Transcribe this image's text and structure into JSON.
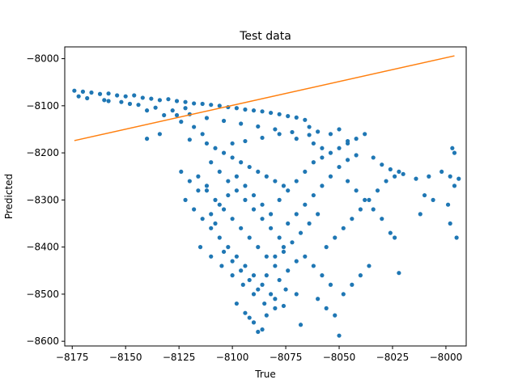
{
  "chart_data": {
    "type": "scatter",
    "title": "Test data",
    "xlabel": "True",
    "ylabel": "Predicted",
    "xlim": [
      -8178.5,
      -7990.5
    ],
    "ylim": [
      -8610,
      -7975
    ],
    "xticks": [
      -8175,
      -8150,
      -8125,
      -8100,
      -8075,
      -8050,
      -8025,
      -8000
    ],
    "xtick_labels": [
      "−8175",
      "−8150",
      "−8125",
      "−8100",
      "−8075",
      "−8050",
      "−8025",
      "−8000"
    ],
    "yticks": [
      -8600,
      -8500,
      -8400,
      -8300,
      -8200,
      -8100,
      -8000
    ],
    "ytick_labels": [
      "−8600",
      "−8500",
      "−8400",
      "−8300",
      "−8200",
      "−8100",
      "−8000"
    ],
    "grid": false,
    "colors": {
      "scatter": "#1f77b4",
      "line": "#ff7f0e"
    },
    "series": [
      {
        "type": "scatter",
        "note_points": "sampled from the scatter cloud",
        "points": [
          [
            -8174,
            -8068
          ],
          [
            -8170,
            -8070
          ],
          [
            -8166,
            -8072
          ],
          [
            -8162,
            -8075
          ],
          [
            -8158,
            -8074
          ],
          [
            -8154,
            -8078
          ],
          [
            -8150,
            -8080
          ],
          [
            -8146,
            -8078
          ],
          [
            -8142,
            -8083
          ],
          [
            -8138,
            -8085
          ],
          [
            -8134,
            -8088
          ],
          [
            -8130,
            -8086
          ],
          [
            -8126,
            -8090
          ],
          [
            -8122,
            -8092
          ],
          [
            -8118,
            -8095
          ],
          [
            -8114,
            -8096
          ],
          [
            -8110,
            -8098
          ],
          [
            -8106,
            -8100
          ],
          [
            -8102,
            -8103
          ],
          [
            -8098,
            -8105
          ],
          [
            -8094,
            -8108
          ],
          [
            -8090,
            -8110
          ],
          [
            -8086,
            -8112
          ],
          [
            -8082,
            -8115
          ],
          [
            -8078,
            -8118
          ],
          [
            -8074,
            -8122
          ],
          [
            -8070,
            -8125
          ],
          [
            -8066,
            -8130
          ],
          [
            -8172,
            -8080
          ],
          [
            -8168,
            -8084
          ],
          [
            -8160,
            -8088
          ],
          [
            -8152,
            -8092
          ],
          [
            -8144,
            -8098
          ],
          [
            -8136,
            -8104
          ],
          [
            -8128,
            -8110
          ],
          [
            -8120,
            -8118
          ],
          [
            -8112,
            -8126
          ],
          [
            -8104,
            -8132
          ],
          [
            -8096,
            -8138
          ],
          [
            -8088,
            -8144
          ],
          [
            -8080,
            -8150
          ],
          [
            -8072,
            -8156
          ],
          [
            -8064,
            -8162
          ],
          [
            -8158,
            -8090
          ],
          [
            -8148,
            -8096
          ],
          [
            -8140,
            -8110
          ],
          [
            -8132,
            -8120
          ],
          [
            -8124,
            -8134
          ],
          [
            -8118,
            -8145
          ],
          [
            -8114,
            -8160
          ],
          [
            -8120,
            -8172
          ],
          [
            -8112,
            -8180
          ],
          [
            -8108,
            -8190
          ],
          [
            -8104,
            -8200
          ],
          [
            -8100,
            -8210
          ],
          [
            -8096,
            -8220
          ],
          [
            -8092,
            -8230
          ],
          [
            -8088,
            -8240
          ],
          [
            -8084,
            -8250
          ],
          [
            -8080,
            -8260
          ],
          [
            -8076,
            -8270
          ],
          [
            -8100,
            -8180
          ],
          [
            -8094,
            -8175
          ],
          [
            -8086,
            -8168
          ],
          [
            -8078,
            -8160
          ],
          [
            -8070,
            -8170
          ],
          [
            -8062,
            -8180
          ],
          [
            -8058,
            -8190
          ],
          [
            -8110,
            -8220
          ],
          [
            -8106,
            -8240
          ],
          [
            -8102,
            -8260
          ],
          [
            -8098,
            -8280
          ],
          [
            -8094,
            -8300
          ],
          [
            -8090,
            -8320
          ],
          [
            -8086,
            -8340
          ],
          [
            -8082,
            -8360
          ],
          [
            -8078,
            -8380
          ],
          [
            -8074,
            -8350
          ],
          [
            -8070,
            -8330
          ],
          [
            -8066,
            -8310
          ],
          [
            -8062,
            -8290
          ],
          [
            -8058,
            -8270
          ],
          [
            -8054,
            -8250
          ],
          [
            -8050,
            -8230
          ],
          [
            -8046,
            -8215
          ],
          [
            -8042,
            -8205
          ],
          [
            -8116,
            -8250
          ],
          [
            -8112,
            -8270
          ],
          [
            -8108,
            -8300
          ],
          [
            -8104,
            -8320
          ],
          [
            -8100,
            -8340
          ],
          [
            -8096,
            -8360
          ],
          [
            -8092,
            -8380
          ],
          [
            -8088,
            -8400
          ],
          [
            -8084,
            -8420
          ],
          [
            -8080,
            -8440
          ],
          [
            -8076,
            -8410
          ],
          [
            -8072,
            -8390
          ],
          [
            -8068,
            -8370
          ],
          [
            -8064,
            -8350
          ],
          [
            -8060,
            -8330
          ],
          [
            -8110,
            -8360
          ],
          [
            -8106,
            -8380
          ],
          [
            -8102,
            -8400
          ],
          [
            -8098,
            -8420
          ],
          [
            -8094,
            -8440
          ],
          [
            -8090,
            -8460
          ],
          [
            -8086,
            -8480
          ],
          [
            -8082,
            -8500
          ],
          [
            -8078,
            -8470
          ],
          [
            -8074,
            -8450
          ],
          [
            -8070,
            -8430
          ],
          [
            -8066,
            -8420
          ],
          [
            -8062,
            -8440
          ],
          [
            -8058,
            -8460
          ],
          [
            -8054,
            -8480
          ],
          [
            -8115,
            -8400
          ],
          [
            -8110,
            -8420
          ],
          [
            -8105,
            -8440
          ],
          [
            -8100,
            -8460
          ],
          [
            -8095,
            -8480
          ],
          [
            -8090,
            -8500
          ],
          [
            -8085,
            -8520
          ],
          [
            -8080,
            -8510
          ],
          [
            -8075,
            -8490
          ],
          [
            -8124,
            -8240
          ],
          [
            -8120,
            -8260
          ],
          [
            -8116,
            -8280
          ],
          [
            -8122,
            -8300
          ],
          [
            -8118,
            -8320
          ],
          [
            -8114,
            -8340
          ],
          [
            -8110,
            -8330
          ],
          [
            -8106,
            -8310
          ],
          [
            -8102,
            -8290
          ],
          [
            -8098,
            -8250
          ],
          [
            -8094,
            -8270
          ],
          [
            -8090,
            -8290
          ],
          [
            -8086,
            -8310
          ],
          [
            -8082,
            -8330
          ],
          [
            -8078,
            -8300
          ],
          [
            -8074,
            -8280
          ],
          [
            -8070,
            -8260
          ],
          [
            -8066,
            -8240
          ],
          [
            -8062,
            -8220
          ],
          [
            -8058,
            -8210
          ],
          [
            -8054,
            -8200
          ],
          [
            -8050,
            -8190
          ],
          [
            -8046,
            -8180
          ],
          [
            -8042,
            -8170
          ],
          [
            -8038,
            -8160
          ],
          [
            -8112,
            -8280
          ],
          [
            -8108,
            -8350
          ],
          [
            -8104,
            -8410
          ],
          [
            -8100,
            -8430
          ],
          [
            -8096,
            -8450
          ],
          [
            -8092,
            -8470
          ],
          [
            -8088,
            -8490
          ],
          [
            -8084,
            -8460
          ],
          [
            -8080,
            -8420
          ],
          [
            -8076,
            -8400
          ],
          [
            -8098,
            -8520
          ],
          [
            -8094,
            -8540
          ],
          [
            -8090,
            -8560
          ],
          [
            -8088,
            -8580
          ],
          [
            -8086,
            -8575
          ],
          [
            -8092,
            -8550
          ],
          [
            -8084,
            -8545
          ],
          [
            -8080,
            -8530
          ],
          [
            -8076,
            -8525
          ],
          [
            -8070,
            -8500
          ],
          [
            -8068,
            -8565
          ],
          [
            -8060,
            -8510
          ],
          [
            -8056,
            -8530
          ],
          [
            -8052,
            -8545
          ],
          [
            -8050,
            -8588
          ],
          [
            -8048,
            -8500
          ],
          [
            -8044,
            -8480
          ],
          [
            -8040,
            -8460
          ],
          [
            -8036,
            -8440
          ],
          [
            -8056,
            -8400
          ],
          [
            -8052,
            -8380
          ],
          [
            -8048,
            -8360
          ],
          [
            -8044,
            -8340
          ],
          [
            -8040,
            -8320
          ],
          [
            -8036,
            -8300
          ],
          [
            -8032,
            -8280
          ],
          [
            -8028,
            -8260
          ],
          [
            -8024,
            -8250
          ],
          [
            -8020,
            -8245
          ],
          [
            -8046,
            -8260
          ],
          [
            -8042,
            -8280
          ],
          [
            -8038,
            -8300
          ],
          [
            -8034,
            -8320
          ],
          [
            -8030,
            -8340
          ],
          [
            -8026,
            -8370
          ],
          [
            -8024,
            -8380
          ],
          [
            -8022,
            -8455
          ],
          [
            -8010,
            -8290
          ],
          [
            -8006,
            -8300
          ],
          [
            -8034,
            -8210
          ],
          [
            -8030,
            -8225
          ],
          [
            -8026,
            -8235
          ],
          [
            -8022,
            -8240
          ],
          [
            -8014,
            -8255
          ],
          [
            -8012,
            -8330
          ],
          [
            -8008,
            -8250
          ],
          [
            -8002,
            -8240
          ],
          [
            -7999,
            -8310
          ],
          [
            -7998,
            -8350
          ],
          [
            -7998,
            -8250
          ],
          [
            -7997,
            -8190
          ],
          [
            -7996,
            -8200
          ],
          [
            -7996,
            -8270
          ],
          [
            -7995,
            -8380
          ],
          [
            -7994,
            -8255
          ],
          [
            -8054,
            -8160
          ],
          [
            -8050,
            -8150
          ],
          [
            -8046,
            -8175
          ],
          [
            -8064,
            -8145
          ],
          [
            -8060,
            -8155
          ],
          [
            -8126,
            -8120
          ],
          [
            -8122,
            -8105
          ],
          [
            -8134,
            -8160
          ],
          [
            -8140,
            -8170
          ]
        ]
      },
      {
        "type": "line",
        "points": [
          [
            -8174,
            -8174
          ],
          [
            -7996,
            -7994
          ]
        ]
      }
    ]
  }
}
